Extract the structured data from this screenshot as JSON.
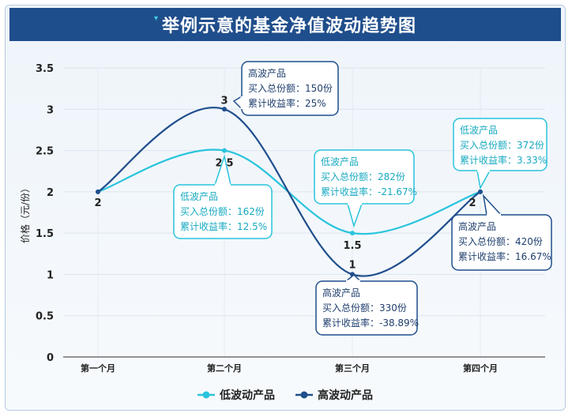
{
  "chart_data": {
    "type": "line",
    "title": "举例示意的基金净值波动趋势图",
    "ylabel": "价格（元/份）",
    "xlabel": "",
    "categories": [
      "第一个月",
      "第二个月",
      "第三个月",
      "第四个月"
    ],
    "ylim": [
      0,
      3.5
    ],
    "yticks": [
      "0",
      "0.5",
      "1",
      "1.5",
      "2",
      "2.5",
      "3",
      "3.5"
    ],
    "grid": true,
    "legend_position": "bottom",
    "series": [
      {
        "name": "低波动产品",
        "color": "#29c4dc",
        "values": [
          2,
          2.5,
          1.5,
          2
        ],
        "value_labels": [
          "2",
          "2.5",
          "1.5",
          "2"
        ]
      },
      {
        "name": "高波动产品",
        "color": "#1f4e8c",
        "values": [
          2,
          3,
          1,
          2
        ],
        "value_labels": [
          "2",
          "3",
          "1",
          "2"
        ]
      }
    ],
    "annotations": [
      {
        "series": 1,
        "point": 1,
        "lines": [
          "高波产品",
          "买入总份额：150份",
          "累计收益率：25%"
        ]
      },
      {
        "series": 0,
        "point": 1,
        "lines": [
          "低波产品",
          "买入总份额：162份",
          "累计收益率：12.5%"
        ]
      },
      {
        "series": 0,
        "point": 2,
        "lines": [
          "低波产品",
          "买入总份额：282份",
          "累计收益率：-21.67%"
        ]
      },
      {
        "series": 1,
        "point": 2,
        "lines": [
          "高波产品",
          "买入总份额：330份",
          "累计收益率：-38.89%"
        ]
      },
      {
        "series": 0,
        "point": 3,
        "lines": [
          "低波产品",
          "买入总份额：372份",
          "累计收益率：3.33%"
        ]
      },
      {
        "series": 1,
        "point": 3,
        "lines": [
          "高波产品",
          "买入总份额：420份",
          "累计收益率：16.67%"
        ]
      }
    ]
  }
}
